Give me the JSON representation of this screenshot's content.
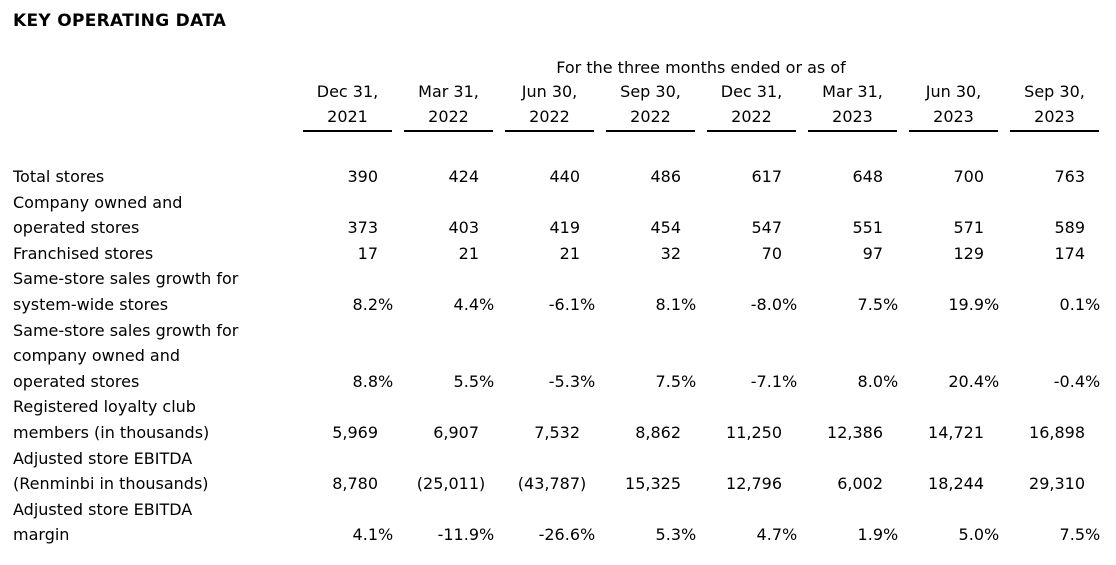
{
  "title": "KEY OPERATING DATA",
  "table": {
    "span_header": "For the three months ended or as of",
    "columns": [
      {
        "date": "Dec 31,",
        "year": "2021"
      },
      {
        "date": "Mar 31,",
        "year": "2022"
      },
      {
        "date": "Jun 30,",
        "year": "2022"
      },
      {
        "date": "Sep 30,",
        "year": "2022"
      },
      {
        "date": "Dec 31,",
        "year": "2022"
      },
      {
        "date": "Mar 31,",
        "year": "2023"
      },
      {
        "date": "Jun 30,",
        "year": "2023"
      },
      {
        "date": "Sep 30,",
        "year": "2023"
      }
    ],
    "rows": [
      {
        "label": "Total stores",
        "values": [
          "390",
          "424",
          "440",
          "486",
          "617",
          "648",
          "700",
          "763"
        ]
      },
      {
        "label": "Company owned and\noperated stores",
        "values": [
          "373",
          "403",
          "419",
          "454",
          "547",
          "551",
          "571",
          "589"
        ]
      },
      {
        "label": "Franchised stores",
        "values": [
          "17",
          "21",
          "21",
          "32",
          "70",
          "97",
          "129",
          "174"
        ]
      },
      {
        "label": "Same-store sales growth for\nsystem-wide stores",
        "values": [
          "8.2%",
          "4.4%",
          "-6.1%",
          "8.1%",
          "-8.0%",
          "7.5%",
          "19.9%",
          "0.1%"
        ]
      },
      {
        "label": "Same-store sales growth for\ncompany owned and\noperated stores",
        "values": [
          "8.8%",
          "5.5%",
          "-5.3%",
          "7.5%",
          "-7.1%",
          "8.0%",
          "20.4%",
          "-0.4%"
        ]
      },
      {
        "label": "Registered loyalty club\nmembers (in thousands)",
        "values": [
          "5,969",
          "6,907",
          "7,532",
          "8,862",
          "11,250",
          "12,386",
          "14,721",
          "16,898"
        ]
      },
      {
        "label": "Adjusted store EBITDA\n(Renminbi in thousands)",
        "values": [
          "8,780",
          "(25,011)",
          "(43,787)",
          "15,325",
          "12,796",
          "6,002",
          "18,244",
          "29,310"
        ]
      },
      {
        "label": "Adjusted store EBITDA\nmargin",
        "values": [
          "4.1%",
          "-11.9%",
          "-26.6%",
          "5.3%",
          "4.7%",
          "1.9%",
          "5.0%",
          "7.5%"
        ]
      }
    ]
  }
}
